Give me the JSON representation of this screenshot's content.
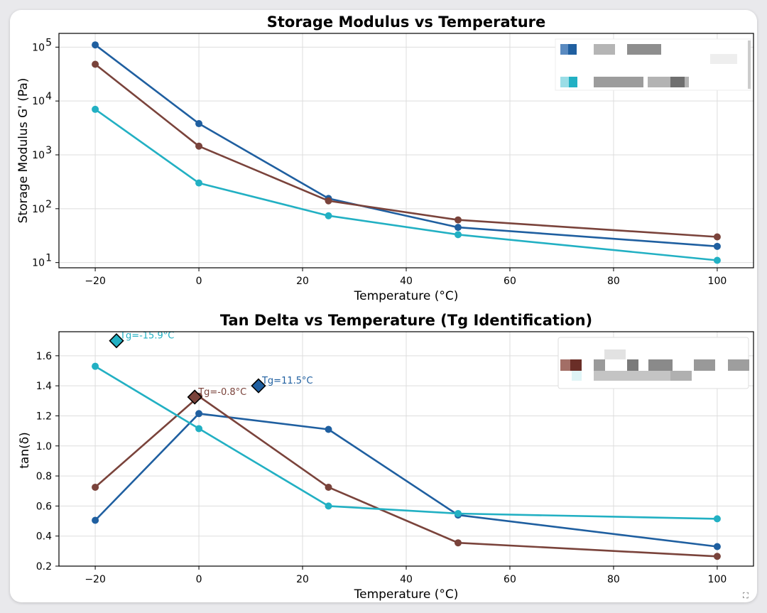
{
  "chart_data": [
    {
      "type": "line",
      "title": "Storage Modulus vs Temperature",
      "xlabel": "Temperature (°C)",
      "ylabel": "Storage Modulus G' (Pa)",
      "yscale": "log",
      "xlim": [
        -27,
        107
      ],
      "ylim": [
        8,
        180000
      ],
      "xticks": [
        -20,
        0,
        20,
        40,
        60,
        80,
        100
      ],
      "xticklabels": [
        "−20",
        "0",
        "20",
        "40",
        "60",
        "80",
        "100"
      ],
      "yticks": [
        10,
        100,
        1000,
        10000,
        100000
      ],
      "yticklabels": [
        "10",
        "10",
        "10",
        "10",
        "10"
      ],
      "ytickexp": [
        "1",
        "2",
        "3",
        "4",
        "5"
      ],
      "grid": true,
      "legend": "top-right (entries blurred)",
      "x": [
        -20,
        0,
        25,
        50,
        100
      ],
      "series": [
        {
          "name": "blurred series 1",
          "color": "#1f5fa0",
          "values": [
            110000,
            3800,
            155,
            45,
            20
          ]
        },
        {
          "name": "blurred series 2",
          "color": "#7a433b",
          "values": [
            48000,
            1450,
            140,
            62,
            30
          ]
        },
        {
          "name": "blurred series 3",
          "color": "#22b0c3",
          "values": [
            7000,
            300,
            74,
            33,
            11
          ]
        }
      ]
    },
    {
      "type": "line",
      "title": "Tan Delta vs Temperature (Tg Identification)",
      "xlabel": "Temperature (°C)",
      "ylabel": "tan(δ)",
      "yscale": "linear",
      "xlim": [
        -27,
        107
      ],
      "ylim": [
        0.2,
        1.76
      ],
      "xticks": [
        -20,
        0,
        20,
        40,
        60,
        80,
        100
      ],
      "xticklabels": [
        "−20",
        "0",
        "20",
        "40",
        "60",
        "80",
        "100"
      ],
      "yticks": [
        0.2,
        0.4,
        0.6,
        0.8,
        1.0,
        1.2,
        1.4,
        1.6
      ],
      "yticklabels": [
        "0.2",
        "0.4",
        "0.6",
        "0.8",
        "1.0",
        "1.2",
        "1.4",
        "1.6"
      ],
      "grid": true,
      "legend": "top-right (entries blurred)",
      "x": [
        -20,
        0,
        25,
        50,
        100
      ],
      "series": [
        {
          "name": "blurred series 1",
          "color": "#1f5fa0",
          "values": [
            0.505,
            1.215,
            1.11,
            0.54,
            0.33
          ]
        },
        {
          "name": "blurred series 2",
          "color": "#7a433b",
          "values": [
            0.725,
            1.33,
            0.725,
            0.355,
            0.265
          ]
        },
        {
          "name": "blurred series 3",
          "color": "#22b0c3",
          "values": [
            1.53,
            1.115,
            0.6,
            0.55,
            0.515
          ]
        }
      ],
      "annotations": [
        {
          "label": "Tg=-15.9°C",
          "x": -15.9,
          "y": 1.7,
          "color": "#22b0c3"
        },
        {
          "label": "Tg=-0.8°C",
          "x": -0.8,
          "y": 1.325,
          "color": "#7a433b"
        },
        {
          "label": "Tg=11.5°C",
          "x": 11.5,
          "y": 1.4,
          "color": "#1f5fa0"
        }
      ]
    }
  ]
}
